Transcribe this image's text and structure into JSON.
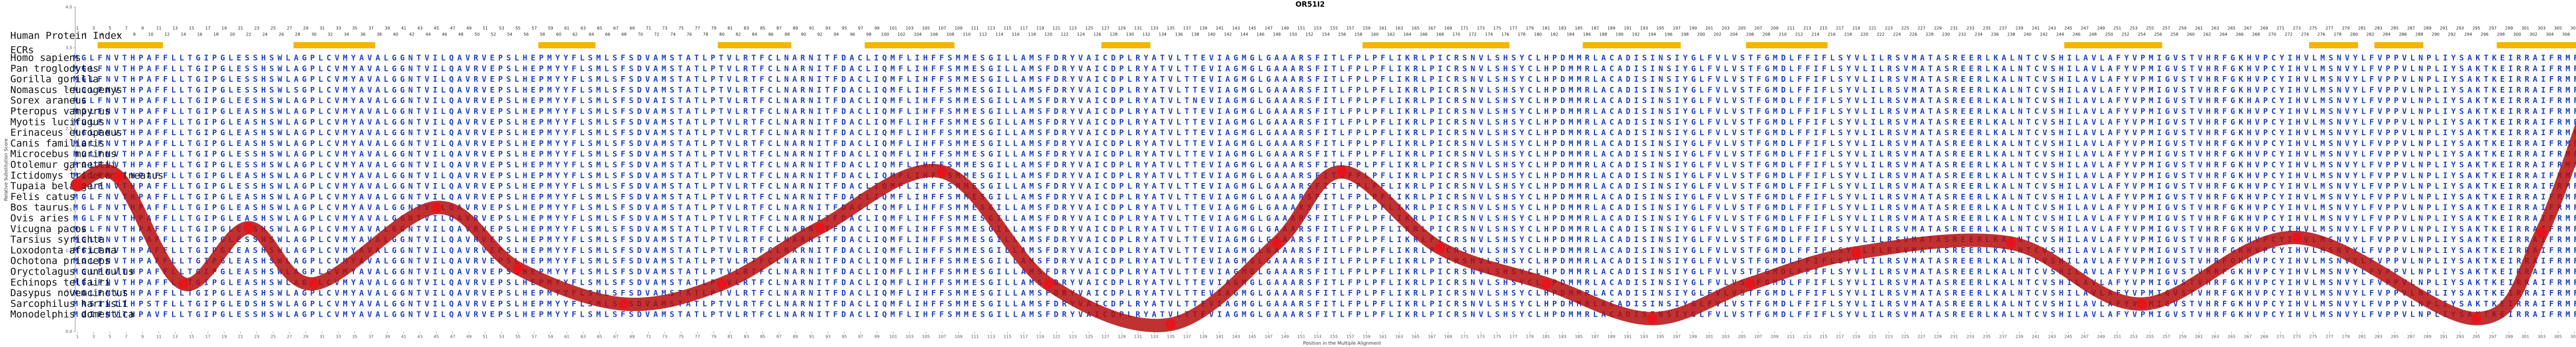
{
  "chart_data": {
    "type": "line",
    "title": "OR51I2",
    "index_label": "Human Protein Index",
    "ecr_label": "ECRs",
    "ylabel": "Relative Substitution Score",
    "xlabel": "Position in the Multiple Alignment",
    "ylim": [
      0,
      4.0
    ],
    "yticks": [
      {
        "value": 0,
        "label": "0.0"
      },
      {
        "value": 0.5,
        "label": "0.5"
      },
      {
        "value": 1,
        "label": "1.0"
      },
      {
        "value": 1.5,
        "label": "1.5"
      },
      {
        "value": 2,
        "label": "2.0"
      },
      {
        "value": 2.5,
        "label": "2.5"
      },
      {
        "value": 3,
        "label": "3.0"
      },
      {
        "value": 3.5,
        "label": "3.5"
      },
      {
        "value": 4,
        "label": "4.0"
      }
    ],
    "xlim": [
      1,
      311
    ],
    "xticks": [
      1,
      3,
      5,
      7,
      9,
      11,
      13,
      15,
      17,
      19,
      21,
      23,
      25,
      27,
      29,
      31,
      33,
      35,
      37,
      39,
      41,
      43,
      45,
      47,
      49,
      51,
      53,
      55,
      57,
      59,
      61,
      63,
      65,
      67,
      69,
      71,
      73,
      75,
      77,
      79,
      81,
      83,
      85,
      87,
      89,
      91,
      93,
      95,
      97,
      99,
      101,
      103,
      105,
      107,
      109,
      111,
      113,
      115,
      117,
      119,
      121,
      123,
      125,
      127,
      129,
      131,
      133,
      135,
      137,
      139,
      141,
      143,
      145,
      147,
      149,
      151,
      153,
      155,
      157,
      159,
      161,
      163,
      165,
      167,
      169,
      171,
      173,
      175,
      177,
      179,
      181,
      183,
      185,
      187,
      189,
      191,
      193,
      195,
      197,
      199,
      201,
      203,
      205,
      207,
      209,
      211,
      213,
      215,
      217,
      219,
      221,
      223,
      225,
      227,
      229,
      231,
      233,
      235,
      237,
      239,
      241,
      243,
      245,
      247,
      249,
      251,
      253,
      255,
      257,
      259,
      261,
      263,
      265,
      267,
      269,
      271,
      273,
      275,
      277,
      279,
      281,
      283,
      285,
      287,
      289,
      291,
      293,
      295,
      297,
      299,
      301,
      303,
      305,
      307,
      309,
      311
    ],
    "human_index": [
      1,
      2,
      3,
      4,
      5,
      6,
      7,
      8,
      9,
      10,
      11,
      12,
      13,
      14,
      15,
      16,
      17,
      18,
      19,
      20,
      21,
      22,
      23,
      24,
      25,
      26,
      27,
      28,
      29,
      30,
      31,
      32,
      33,
      34,
      35,
      36,
      37,
      38,
      39,
      40,
      41,
      42,
      43,
      44,
      45,
      46,
      47,
      48,
      49,
      50,
      51,
      52,
      53,
      54,
      55,
      56,
      57,
      58,
      59,
      60,
      61,
      62,
      63,
      64,
      65,
      66,
      67,
      68,
      69,
      70,
      71,
      72,
      73,
      74,
      75,
      76,
      77,
      78,
      79,
      80,
      81,
      82,
      83,
      84,
      85,
      86,
      87,
      88,
      89,
      90,
      91,
      92,
      93,
      94,
      95,
      96,
      97,
      98,
      99,
      100,
      101,
      102,
      103,
      104,
      105,
      106,
      107,
      108,
      109,
      110,
      111,
      112,
      113,
      114,
      115,
      116,
      117,
      118,
      119,
      120,
      121,
      122,
      123,
      124,
      125,
      126,
      127,
      128,
      129,
      130,
      131,
      132,
      133,
      134,
      135,
      136,
      137,
      138,
      139,
      140,
      141,
      142,
      143,
      144,
      145,
      146,
      147,
      148,
      149,
      150,
      151,
      152,
      153,
      154,
      155,
      156,
      157,
      158,
      159,
      160,
      161,
      162,
      163,
      164,
      165,
      166,
      167,
      168,
      169,
      170,
      171,
      172,
      173,
      174,
      175,
      176,
      177,
      178,
      179,
      180,
      181,
      182,
      183,
      184,
      185,
      186,
      187,
      188,
      189,
      190,
      191,
      192,
      193,
      194,
      195,
      196,
      197,
      198,
      199,
      200,
      201,
      202,
      203,
      204,
      205,
      206,
      207,
      208,
      209,
      210,
      211,
      212,
      213,
      214,
      215,
      216,
      217,
      218,
      219,
      220,
      221,
      222,
      223,
      224,
      225,
      226,
      227,
      228,
      229,
      230,
      231,
      232,
      233,
      234,
      235,
      236,
      237,
      238,
      239,
      240,
      241,
      242,
      243,
      244,
      245,
      246,
      247,
      248,
      249,
      250,
      251,
      252,
      253,
      254,
      255,
      256,
      257,
      258,
      259,
      260,
      261,
      262,
      263,
      264,
      265,
      266,
      267,
      268,
      269,
      270,
      271,
      272,
      273,
      274,
      275,
      276,
      277,
      278,
      279,
      280,
      281,
      282,
      283,
      284,
      285,
      286,
      287,
      288,
      289,
      290,
      291,
      292,
      293,
      294,
      295,
      296,
      297,
      298,
      299,
      300,
      301,
      302,
      303,
      304,
      305,
      306,
      307,
      308,
      309,
      310,
      311
    ],
    "ecr_color": "#f5b400",
    "ecrs": [
      [
        4,
        11
      ],
      [
        28,
        37
      ],
      [
        58,
        64
      ],
      [
        80,
        88
      ],
      [
        98,
        108
      ],
      [
        127,
        132
      ],
      [
        159,
        176
      ],
      [
        186,
        197
      ],
      [
        206,
        215
      ],
      [
        245,
        256
      ],
      [
        275,
        280
      ],
      [
        283,
        288
      ],
      [
        298,
        309
      ]
    ],
    "species": [
      "Homo sapiens",
      "Pan troglodytes",
      "Gorilla gorilla",
      "Nomascus leucogenys",
      "Sorex araneus",
      "Pteropus vampyrus",
      "Myotis lucifugus",
      "Erinaceus europaeus",
      "Canis familiaris",
      "Microcebus murinus",
      "Otolemur garnettii",
      "Ictidomys tridecemlineatus",
      "Tupaia belangeri",
      "Felis catus",
      "Bos taurus",
      "Ovis aries",
      "Vicugna pacos",
      "Tarsius syrichta",
      "Loxodonta africana",
      "Ochotona princeps",
      "Oryctolagus cuniculus",
      "Echinops telfairi",
      "Dasypus novemcinctus",
      "Sarcophilus harrisii",
      "Monodelphis domestica"
    ],
    "sequence_color": "#1d3fbf",
    "sequences": [
      "MGLFNVTHPAFFLLTGIPGLESSHSWLAGPLCVMYAVALGGNTVILQAVRVEPSLHEPMYYFLSMLSFSDVAMSTATLPTVLRTFCLNARNITFDACLIQMFLIHFFSMMESGILLAMSFDRYVAICDPLRYATVLTTEVIAGMGLGAAARSFITLFPLPFLIKRLPICRSNVLSHSYCLHPDMMRLACADISINSIYGLFVLVSTFGMDLFFIFLSYVLILRSVMATASREERLKALNTCVSHILAVLAFYVPMIGVSTVHRFGKHVPCYIHVLMSNVYLFVPPVLNPLIYSAKTKEIRRAIFRMFHHIKI",
      "MGLFNVTHPAFFLLTGIPGLESSHSWLAGPLCVMYAVALGGNTVILQAVRVEPSLHEPMYYFLSMLSFSDVAMSTATLPTVLRTFCLNARNITFDACLIQMFLIHFFSMMESGILLAMSFDRYVAICDPLRYATVLTTEVIAGMGLGAAARSFITLFPLPFLIKRLPICRSNVLSHSYCLHPDMMRLACADISINSIYGLFVLVSTFGMDLFFIFLSYVLILRSVMATASREERLKALNTCVSHILAVLAFYVPMIGVSTVHRFGKHVPCYIHVLMSNVYLFVPPVLNPLIYSAKTKEIRRAIFRMFHHIKI",
      "MGLFNVTHPAFFLLTGIPGLESSHSWLAGPLCVMYAVALGGNTVILQAVRVEPSLHEPMYYFLSMLSFSDVAMSTATLPTVLRTFCLNARNITFDACLIQMFLIHFFSMMESGILLAMSFDRYVAICDPLRYATVLTTEVIAGMGLGAAARSFITLFPLPFLIKRLPICRSNVLSHSYCLHPDMMRLACADISINSIYGLFVLVSTFGMDLFFIFLSYVLILRSVMATASREERLKALNTCVSHILAVLAFYVPMIGVSTVHRFGKHVPCYIHVLMSNVYLFVPPVLNPLIYSAKTKEIRRAIFRMFHHIKI",
      "MGLFNVTHPAFFLLTGIPGLESSHSWLSGPLCVMYAVALGGNTVILQAVRVEPSLHEPMYYFLSMLSFSDVAMSTATLPTVLRTFCLNARNITFDACLIQMFLIHFFSMMESGILLAMSFDRYVAICDPLRYATVLTTEVIAGMGLGAAARSFITLFPLPFLIKRLPICRSNVLSHSYCLHPDMMRLACADISINSIYGLFVLVSTFGMDLFFIFLSYVLILRSVMATASREERLKALNTCVSHILAVLAFYVPMIGVSTVHRFGKHVPCYIHVLMSNVYLFVPPVLNPLIYSAKTKEIRRAIFRMFHHIKI",
      "MGLFNVTHPAFFLLTGIPGLEESHSWLAGPLCVMYAVALGGNTVILQAVRVEPSLHEPMYYFLSMLSFSDVAISTATLPTVLRTFCLNARNITFDACLIQMFLIHFFSMMESGILLAMSFDRYVAICDPLRYATVLTNEVIAGMGLGAAARSFITLFPLPFLIKRLPICRSNVLSHSYCLHPDMMRLACADISINSIYGLFVLVSTFGMDLFFIFLSYVLILRSVMATASREERLKALNTCVSHILAVLAFYVPMIGVSTVHRFGKHAPCYIHVLMSNVYLFVPPVLNPLIYSAKTKEIRRAIFRMFHHIKI",
      "MGLFNVTHPAFFLLTGIPGLEASHSWLAGPLCVMYAVALGGNTVILQAVRVEPSLHEPMYYFLSMLSFSDVAMSTATLPTVLRTFCLNARNITFDACLIQMFLIHFFSMMESGILLAMSFDRYVAICDPLRYATVLTTEVIAGMGLGAAARSFITLFPLPFLIKRLPICRSNVLSHSYCLHPDMMRLACADISINSIYGLFVLVSTFGMDLFFIFLSYVLILRSVMATASREERLKALNTCVSHILAVLAFYVPMIGVSTVHRFGKHVPCYIHVLMSNVYLFVPPVLNPLIYSAKTKEIRRAIFRMFHHIKI",
      "MGLFNVTHPAFFLLTGIPGLEASHSWLAGPLCVMYAVALGGNTVILQAVRVEPSLHEPMYYFLSMLSFSDVAMSTATLPTVLRTFCLNARNITFDACLIQMFLIHFFSMMESGILLAMSFDRYVAICDPLRYATVLTTEVIAGMGLGAAARSFITLFPLPFLIKRLPICRSNVLSHSYCLHPDMMRLACADISINSIYGLFVLVSTFGMDLFFIFLSYVLILRSVMATASREERLKALNTCVSHILAVLAFYVPMIGVSTVHRFGKHVPCYIHVLMSNVYLFVPPVLNPLIYSAKTKEIRRAIFRMFHHIKI",
      "MGLFNVTHPAFFLLTGIPGLEASHSWLAGPLCVMYAVALGGNTVILQAVRVEPSLHEPMYYFLSMLSFSDVAMSTATLPTVLRTFCLNARNITFDACLIQMFLIHFFSMMESGILLAMSFDRYVAICDPLRYATVLTTEVIAGMGLGAAARSFITLFPLPFLIKRLPICRSNVLSHSYCLHPDMMRLACADISINSIYGLFVLVSTFGMDLFFIFLSYVLILRSVMATASREERLKALNTCVSHILAVLAFYVPMIGVSTVHRFGKHVPCYIHVLMSNVYLFVPPVLNPLIYSAKTKEIRRAIFRMFHRLKI",
      "MGLFNVTHPAFFLLTGIPGLEASHSWLAGPLCVMYAVALGGNTVILQAVRVEPSLHEPMYYFLSMLSFSDVAMSTATLPTVLRTFCLNARNITFDACLIQMFLIHFFSMMESGILLAMSFDRYVAICDPLRYATVLTTEVIAGMGLGAAARSFITLFPLPFLIKRLPICRSNVLSHSYCLHPDMMRLACADISINSIYGLFVLVSTFGMDLFFIFLSYVLILRSVMATASREERLKALNTCVSHILAVLAFYVPMIGVSTVHRFGKHVPCYIHVLMSNVYLFVPPVLNPLIYSAKTKEIRRAIFRMFHRLKI",
      "MGLFNVTHPAFFLLTGIPGLESSHSWLAGPLCVMYAVALGGNTVILQAVRVEPSLHEPMYYFLSMLSFSDVAMSTATLPTVLRTFCLNARNITFDACLIQMFLIHFFSMMESGILLAMSFDRYVAICDPLRYATVLTTEVIAGMGLGAAARSFITLFPLPFLIKRLPICRSNVLSHSYCLHPDMMRLACADISINSIYGLFVLVSTFGMDLFFIFLSYVLILRSVMATASREERLKALNTCVSHILAVLAFYVPMIGVSTVHRFGKHVPCYIHVLMSNVYLFVPPVLNPLIYSAKTKEIRRAIFRMFHHIKI",
      "MGLFNVTHPAFFLLTGIPGLESSHSWLAGPLCVMYAVALGGNTVILQAVRVEPSLHEPMYYFLSMLSFSDVAMSTATLPTVLRTFCLNARNITFDACLIQMFLIHFFSMMESGILLAMSFDRYVAICDPLRYATVLTTEVIAGMGLGAAARSFITLFPLPFLIKRLPICRSNVLSHSYCLHPDMMRLACADISINSIYGLFVLVSTFGMDLFFIFLSYVLILRSVMATASREERLKALNTCVSHILAVLAFYVPMIGVSTVHRFGKHVPCYIHVLMSNVYLFVPPVLNPLIYSAKTKEIRRAIFRMFHHIKI",
      "MGLFNVTHPAFFLLTGIPGLEASHSWLAGPLCVMYAVALGGNTVILQAVRVEPSLHEPMYYFLSMLSFSDVAMSTATLPTVLRTFCLNARNITFDACLIQMFLIHFFSMMESGILLAMSFDRYVAICDPLRYATVLTTEVIAGMGLGAAARSFITLFPLPFLIKRLPICRSNVLSHSYCLHPDMMRLACADISINSIYGLFVLVSTFGMDLFFIFLSYVLILRSVMATASREERLKALNTCVSHILAVLAFYVPMIGVSTVHRFGKHVPCYIHVLMSNVYLFVPPVLNPLIYSAKTKEIRRAIFRMFHHIKI",
      "MGLFNVTHPAFFLLTGIPGLESSHSWLAGPLCVMYAVALGGNTVILQAVRVEPSLHEPMYYFLSMLSFSDVAMSTATLPTVLRTFCLNARNITFDACLIQMFLIHFFSMMESGILLAMSFDRYVAICDPLRYATVLTTEVIAGMGLGAAARSFITLFPLPFLIKRLPICRSNVLSHSYCLHPDMMRLACADISINSIYGLFVLVSTFGMDLFFIFLSYVLILRSVMATASREERLKALNTCVSHILAVLAFYVPMIGVSTVHRFGKHVPCYIHVLMSNVYLFVPPVLNPLIYSAKTKEIRRAIFRMFHRIKI",
      "MGLFNVTHPAFFLLTGIPGLEASHSWLAGPLCVMYAVALGGNTVILQAVRVEPSLHEPMYYFLSMLSFSDVAMSTATLPTVLRTFCLNARNITFDACLIQMFLIHFFSMMESGILLAMSFDRYVAICDPLRYATVLTTEVIAGMGLGAAARSFITLFPLPFLIKRLPICRSNVLSHSYCLHPDMMRLACADISINSIYGLFVLVSTFGMDLFFIFLSYVLILRSVMATASREERLKALNTCVSHILAVLAFYVPMIGVSTVHRFGKHVPCYIHVLMSNVYLFVPPVLNPLIYSAKTKEIRRAIFRMFHRLKI",
      "MGLFNVTHPAFFLLTGIPGLEASHSWLAGPLCVMYAVALGGNTVILQAVRVEPSLHEPMYYFLSMLSFSDVAMSTATLPTVLRTFCLNARNITFDACLIQMFLIHFFSMMESGILLAMSFDRYVAICDPLRYATVLTTEVIAGMGLGAAARSFITLFPLPFLIKRLPICRSNVLSHSYCLHPDMMRLACADISINSIYGLFVLVSTFGMDLFFIFLSYVLILRSVMATASREERLKALNTCVSHILAVLAFYVPMIGVSTVHRFGKHVPCYIHVLMSNVYLFVPPVLNPLIYSAKTKEIRRAIFRMFHRLKI",
      "MGLFNVTHPAFFLLTGIPGLEASHSWLAGPLCVMYAVALGGNTVILQAVRVEPSLHEPMYYFLSMLSFSDVAMSTATLPTVLRTFCLNARNITFDACLIQMFLIHFFSMMESGILLAMSFDRYVAICDPLRYATVLTTEVIAGMGLGAAARSFITLFPLPFLIKRLPICRSNVLSHSYCLHPDMMRLACADISINSIYGLFVLVSTFGMDLFFIFLSYVLILRSVMATASREERLKALNTCVSHILAVLAFYVPMIGVSTVHRFGKHVPCYIHVLMSNVYLFVPPVLNPLIYSAKTKEIRRAIFRMFHRLKI",
      "MGLFNVTHPAFFLLTGIPGLEASHSWLAGPLCVMYAVALGGNTVILQAVRVEPSLHEPMYYFLSMLSFSDVAMSTATLPTVLRTFCLNARNITFDACLIQMFLIHFFSMMESGILLAMSFDRYVAICDPLRYATVLTTEVIAGMGLGAAARSFITLFPLPFLIKRLPICRSNVLSHSYCLHPDMMRLACADISINSIYGLFVLVSTFGMDLFFIFLSYVLILRSVMATASREERLKALNTCVSHILAVLAFYVPMIGVSTVHRFGKHVPCYIHVLMSNVYLFVPPVLNPLIYSAKTKEIRRAIFRMFHRLKI",
      "MGLFNVTHPAFFLLTGIPGLESSHSWLAGPLCVMYAVALGGNTVILQAVRVEPSLHEPMYYFLSMLSFSDVAMSTATLPTVLRTFCLNARNITFDACLIQMFLIHFFSMMESGILLAMSFDRYVAICDPLRYATVLTTEVIAGMGLGAAARSFITLFPLPFLIKRLPICRSNVLSHSYCLHPDMMRLACADISINSIYGLFVLVSTFGMDLFFIFLSYVLILRSVMATASREERLKALNTCVSHILAVLAFYVPMIGVSTVHRFGKHVPCYIHVLMSNVYLFVPPVLNPLIYSAKTKEIRRAIFRMFHHIKI",
      "MGLFNVTHPAFFLLTGIPGLEASHSWLAGPLCVMYAVALGGNTVILQAVRVEPSLHEPMYYFLSMLSFSDVAMSTATLPTVLRTFCLNARNITFDACLIQMFLIHFFSMMESGILLAMSFDRYVAICDPLRYATVLTTEVIAGMGLGAAARSFITLFPLPFLIKRLPICRSNVLSHSYCLHPDMMRLACADISINSIYGLFVLVSTFGMDLFFIFLSYVLILRSVMATASREERLKALNTCVSHILAVLAFYVPMIGVSTVHRFGKHVPCYIHVLMSNVYLFVPPVLNPLIYSAKTKEIRRAIFRMFHRMKI",
      "MGLFNVTHPAFFLLTGIPGLEASHSWLAGPLCVMYAVALGGNTVILQAVRVEPSLHEPMYYFLSMLSFSDVAMSTATLPTVLRTFCLNARNITFDACLIQMFLIHFFSMMESGILLAMSFDRYVAICDPLRYATVLTTEVIAGMGLGAAARSFITLFPLPFLIKRLPICRSNVLSHSYCLHPDMMRLACADISINSIYGLFVLVSTFGMDLFFIFLSYVLILRSVMATASREERLKALNTCVSHILAVLAFYVPMIGVSTVHRFGKHVPCYIHVLMSNVYLFVPPVLNPLIYSAKTKEIRRAIFRMFHRMKI",
      "MGLFNVTHPAFFLLTGIPGLEASHSWLAGPLCVMYAVALGGNTVILQAVRVEPSLHEPMYYFLSMLSFSDVAMSTATLPTVLRTFCLNARNITFDACLIQMFLIHFFSMMESGILLAMSFDRYVAICDPLRYATVLTTEVIAGMGLGAAARSFITLFPLPFLIKRLPICRSNVLSHSYCLHPDMMRLACADISINSIYGLFVLVSTFGMDLFFIFLSYVLILRSVMATASREERLKALNTCVSHILAVLAFYVPMIGVSTVHRFGKHVPCYIHVLMSNVYLFVPPVLNPLIYSAKTKEIRRAIFRMFHRMKI",
      "MGLFNVTHPAFFLLTGIPGLEASHSWLAGPLCVMYAVALGGNTVILQAVRVEPSLHEPMYYFLSMLSFSDVAMSTATLPTVLRTFCLNARNITFDACLIQMFLIHFFSMMESGILLAMSFDRYVAICDPLRYATVLTTEVIAGMGLGAAARSFITLFPLPFLIKRLPICRSNVLSHSYCLHPDMMRLACADISINSIYGLFVLVSTFGMDLFFIFLSYVLILRSVMATASREERLKALNTCVSHILAVLAFYVPMIGVSTVHRFGKHVPCYIHVLMSNVYLFVPPVLNPLIYSAKTKEIRRAIFRMFHRMKI",
      "MGLFNVTHPAFFLLTGIPGLEASHSWLAGPLCVMYAVALGGNTVILQAVRVEPSLHEPMYYFLSMLSFSDVAMSTATLPTVLRTFCLNARNITFDACLIQMFLIHFFSMMESGILLAMSFDRYVAICDPLRYATVLTTEVIAGMGLGAAARSFITLFPLPFLIKRLPICRSNVLSHSYCLHPDMMRLACADISINSIYGLFVLVSTFGMDLFFIFLSYVLILRSVMATASREERLKALNTCVSHILAVLAFYVPMIGVSTVHRFGKHVPCYIHVLMSNVYLFVPPVLNPLIYSAKTKEIRRAIFRMFHRMKI",
      "MRSINITHPSTFLLTGIPGLEDSHSWLAGPLCVMYAVALGGNTVILQAVRVEPSLHEPMYYFLSMLSFSDVAMSTATLPTVLRTFCLNARNITFDACLIQMFLIHFFSMMESGILLAMSFDRYVAICDPLRYATVLTTEVIAGMGLGAAARSFITLFPLPFLIKRLPICRSNVLSHSYCLHPDMMRLACADISINSIYGLFVLVSTFGMDLFFIFLSYVLILRSVMATASREERLKALNTCVSHILAVLAFYVPMIGVSTVHRFGKHVPCYIHVLMSNVYLFVPPVLNPLIYSAKTKEIRRAIFRMFHHMKI",
      "MGIFNVTHPAVFLLTGIPGLESSHSWLAGPLCVMYAVALGGNTVILQAVRVEPSLHEPMYYFLSMLSFSDVAMSTATLPTVLRTFCLNARNITFDACLIQMFLIHFFSMMESGILLAMSFDRYVAICDPLRYATVLTTEVIAGMGLGAAARSFITLFPLPFLIKRLPICRSNVLSHSYCLHPDMMRLACADISINSIYGLFVLVSTFGMDLFFIFLSYVLILRSVMATASREERLKALNTCVSHILAVLAFYVPMIGVSTVHRFGKHVPCYIHVLMSNVYLFVPPVLNPLIYSAKTKEIRRAIFRMFHHMKI"
    ],
    "series": [
      {
        "color": "#b50d0d",
        "marker_color": "#e8141b",
        "x": [
          1,
          6,
          14,
          22,
          30,
          45,
          55,
          68,
          80,
          92,
          107,
          120,
          135,
          148,
          156,
          168,
          181,
          194,
          206,
          219,
          238,
          254,
          273,
          295,
          303,
          311
        ],
        "values": [
          1.81,
          1.91,
          0.59,
          1.28,
          0.59,
          1.53,
          0.78,
          0.34,
          0.59,
          1.28,
          1.97,
          0.59,
          0.09,
          1.09,
          1.97,
          1.03,
          0.59,
          0.16,
          0.59,
          0.97,
          1.09,
          0.34,
          1.16,
          0.16,
          1.22,
          3.47
        ]
      }
    ]
  }
}
